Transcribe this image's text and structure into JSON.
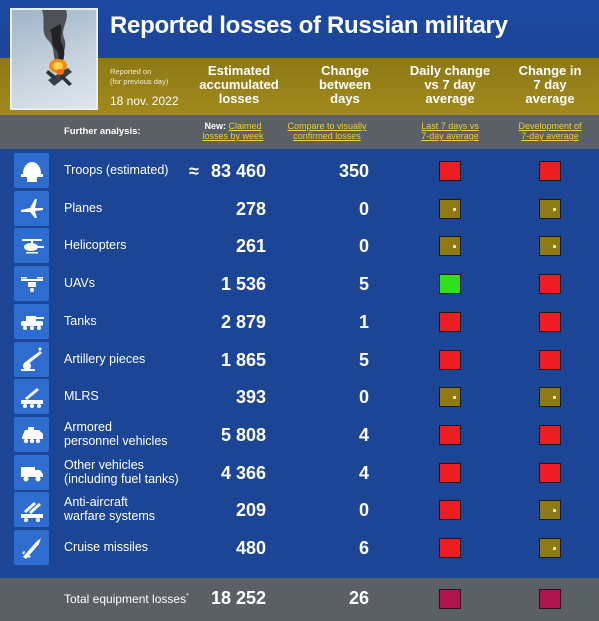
{
  "header": {
    "title": "Reported losses of Russian military",
    "reported_on_label": "Reported on\n(for previous day)",
    "reported_on_line1": "Reported on",
    "reported_on_line2": "(for previous day)",
    "date": "18 nov. 2022"
  },
  "columns": {
    "accumulated": [
      "Estimated",
      "accumulated",
      "losses"
    ],
    "change": [
      "Change",
      "between",
      "days"
    ],
    "daily_vs_avg": [
      "Daily change",
      "vs 7 day",
      "average"
    ],
    "change_avg": [
      "Change in",
      "7 day",
      "average"
    ]
  },
  "further_analysis": {
    "label": "Further analysis:",
    "new_prefix": "New:",
    "claimed_link_1": "Claimed",
    "claimed_link_2": "losses by week",
    "compare_link_1": "Compare to visually",
    "compare_link_2": "confirmed losses",
    "last7_link_1": "Last 7 days vs",
    "last7_link_2": "7-day average",
    "dev_link_1": "Development of",
    "dev_link_2": "7-day average"
  },
  "approx_symbol": "≈",
  "rows": [
    {
      "icon": "helmet-icon",
      "label1": "Troops (estimated)",
      "label2": "",
      "value": "83 460",
      "change": "350",
      "daily": "red",
      "avg": "red",
      "approx": true
    },
    {
      "icon": "plane-icon",
      "label1": "Planes",
      "label2": "",
      "value": "278",
      "change": "0",
      "daily": "olive",
      "avg": "olive"
    },
    {
      "icon": "helicopter-icon",
      "label1": "Helicopters",
      "label2": "",
      "value": "261",
      "change": "0",
      "daily": "olive",
      "avg": "olive"
    },
    {
      "icon": "drone-icon",
      "label1": "UAVs",
      "label2": "",
      "value": "1 536",
      "change": "5",
      "daily": "green",
      "avg": "red"
    },
    {
      "icon": "tank-icon",
      "label1": "Tanks",
      "label2": "",
      "value": "2 879",
      "change": "1",
      "daily": "red",
      "avg": "red"
    },
    {
      "icon": "artillery-icon",
      "label1": "Artillery pieces",
      "label2": "",
      "value": "1 865",
      "change": "5",
      "daily": "red",
      "avg": "red"
    },
    {
      "icon": "mlrs-icon",
      "label1": "MLRS",
      "label2": "",
      "value": "393",
      "change": "0",
      "daily": "olive",
      "avg": "olive"
    },
    {
      "icon": "apc-icon",
      "label1": "Armored",
      "label2": "personnel vehicles",
      "value": "5 808",
      "change": "4",
      "daily": "red",
      "avg": "red"
    },
    {
      "icon": "truck-icon",
      "label1": "Other vehicles",
      "label2": "(including fuel tanks)",
      "value": "4 366",
      "change": "4",
      "daily": "red",
      "avg": "red"
    },
    {
      "icon": "anti-aircraft-icon",
      "label1": "Anti-aircraft",
      "label2": "warfare systems",
      "value": "209",
      "change": "0",
      "daily": "red",
      "avg": "olive"
    },
    {
      "icon": "missile-icon",
      "label1": "Cruise missiles",
      "label2": "",
      "value": "480",
      "change": "6",
      "daily": "red",
      "avg": "olive"
    }
  ],
  "total": {
    "label": "Total equipment losses",
    "footnote_mark": "*",
    "value": "18 252",
    "change": "26",
    "daily": "dred",
    "avg": "dred"
  },
  "colors": {
    "background": "#1c4596",
    "header_gold": "#a28a1c",
    "grey_band": "#5b5f66",
    "icon_tile": "#2f6cd0",
    "link_yellow": "#f2cf2c",
    "status_red": "#ee1d24",
    "status_green": "#2fe01c",
    "status_olive": "#8e7a12"
  }
}
